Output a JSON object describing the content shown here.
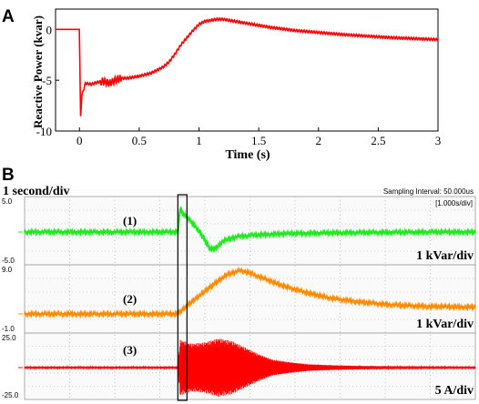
{
  "panel_a": {
    "label": "A",
    "chart_data": {
      "type": "line",
      "title": "",
      "xlabel": "Time (s)",
      "ylabel": "Reactive Power (kvar)",
      "xlim": [
        -0.2,
        3.0
      ],
      "ylim": [
        -10,
        2
      ],
      "xticks": [
        "0",
        "0.5",
        "1",
        "1.5",
        "2",
        "2.5",
        "3"
      ],
      "xtick_values": [
        0,
        0.5,
        1,
        1.5,
        2,
        2.5,
        3
      ],
      "yticks": [
        "-10",
        "-5",
        "0"
      ],
      "ytick_values": [
        -10,
        -5,
        0
      ],
      "grid": false,
      "series": [
        {
          "color": "#ff0000",
          "x": [
            -0.2,
            -0.02,
            0.0,
            0.005,
            0.01,
            0.02,
            0.05,
            0.1,
            0.15,
            0.2,
            0.25,
            0.3,
            0.35,
            0.4,
            0.5,
            0.6,
            0.65,
            0.7,
            0.75,
            0.8,
            0.85,
            0.9,
            0.95,
            1.0,
            1.05,
            1.1,
            1.15,
            1.2,
            1.25,
            1.3,
            1.4,
            1.5,
            1.6,
            1.7,
            1.8,
            2.0,
            2.2,
            2.4,
            2.6,
            2.8,
            3.0
          ],
          "y": [
            0,
            0,
            0,
            -5,
            -8.7,
            -6.5,
            -5.3,
            -5.4,
            -5.2,
            -5.1,
            -5.3,
            -5.0,
            -4.8,
            -4.8,
            -4.6,
            -4.3,
            -4.0,
            -3.7,
            -3.2,
            -2.4,
            -1.5,
            -0.8,
            -0.1,
            0.5,
            0.8,
            0.9,
            1.0,
            1.0,
            0.9,
            0.8,
            0.6,
            0.4,
            0.2,
            0.05,
            -0.1,
            -0.3,
            -0.5,
            -0.65,
            -0.8,
            -0.9,
            -1.0
          ]
        }
      ]
    }
  },
  "panel_b": {
    "label": "B",
    "timebase_label": "1 second/div",
    "sampling_label": "Sampling Interval: 50.000us",
    "div_label": "[1.000s/div]",
    "chart_data": {
      "type": "line",
      "title": "",
      "xlabel": "",
      "x_divisions": 10,
      "seconds_per_div": 1,
      "grid": true,
      "highlight_window_div": [
        3.4,
        3.55
      ],
      "channels": [
        {
          "label": "(1)",
          "unit": "1 kVar/div",
          "ymax_label": "5.0",
          "ymin_label": "-5.0",
          "ylim": [
            -5,
            5
          ],
          "color": "#22e822",
          "x": [
            0,
            3.4,
            3.45,
            3.55,
            3.7,
            3.85,
            4.0,
            4.1,
            4.2,
            4.3,
            4.4,
            4.55,
            4.7,
            4.9,
            5.1,
            5.5,
            6.0,
            7.0,
            8.0,
            9.0,
            10.0
          ],
          "y": [
            0,
            0,
            3.3,
            2.5,
            1.5,
            0.3,
            -1.2,
            -2.3,
            -2.6,
            -2.0,
            -1.3,
            -1.0,
            -0.7,
            -0.55,
            -0.45,
            -0.3,
            -0.2,
            -0.1,
            -0.05,
            0,
            0
          ]
        },
        {
          "label": "(2)",
          "unit": "1 kVar/div",
          "ymax_label": "9.0",
          "ymin_label": "-1.0",
          "ylim": [
            -1,
            9
          ],
          "color": "#ff8c00",
          "x": [
            0,
            3.4,
            3.6,
            3.9,
            4.2,
            4.5,
            4.8,
            5.0,
            5.3,
            5.7,
            6.2,
            6.8,
            7.5,
            8.2,
            9.0,
            10.0
          ],
          "y": [
            0,
            0,
            1.2,
            2.8,
            4.4,
            5.8,
            6.4,
            6.0,
            5.2,
            4.2,
            3.2,
            2.3,
            1.7,
            1.3,
            1.1,
            1.0
          ]
        },
        {
          "label": "(3)",
          "unit": "5 A/div",
          "ymax_label": "25.0",
          "ymin_label": "-25.0",
          "ylim": [
            -25,
            25
          ],
          "color": "#ff0000",
          "envelope_x": [
            0,
            3.4,
            3.45,
            3.7,
            4.0,
            4.3,
            4.6,
            4.9,
            5.2,
            5.5,
            5.9,
            6.3,
            6.8,
            7.5,
            8.5,
            10.0
          ],
          "envelope_amp": [
            0.8,
            0.8,
            21,
            18,
            19,
            22,
            20,
            15,
            10,
            6,
            4,
            2.5,
            1.8,
            1.2,
            1.0,
            0.8
          ]
        }
      ]
    }
  }
}
